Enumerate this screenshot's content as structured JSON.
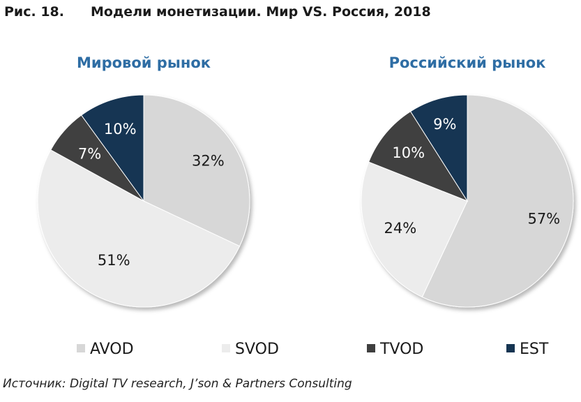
{
  "figure": {
    "number": "Рис. 18.",
    "title": "Модели монетизации. Мир VS. Россия, 2018"
  },
  "source": "Источник: Digital TV research, J’son & Partners Consulting",
  "colors": {
    "AVOD": "#d7d7d7",
    "SVOD": "#ececec",
    "TVOD": "#3f3f3f",
    "EST": "#163552",
    "subtitle": "#2e6da4"
  },
  "chart_data": [
    {
      "type": "pie",
      "title": "Мировой рынок",
      "labels": [
        "AVOD",
        "SVOD",
        "TVOD",
        "EST"
      ],
      "values": [
        32,
        51,
        7,
        10
      ],
      "value_labels": [
        "32%",
        "51%",
        "7%",
        "10%"
      ],
      "legend": "bottom"
    },
    {
      "type": "pie",
      "title": "Российский рынок",
      "labels": [
        "AVOD",
        "SVOD",
        "TVOD",
        "EST"
      ],
      "values": [
        57,
        24,
        10,
        9
      ],
      "value_labels": [
        "57%",
        "24%",
        "10%",
        "9%"
      ],
      "legend": "bottom"
    }
  ],
  "legend": {
    "items": [
      "AVOD",
      "SVOD",
      "TVOD",
      "EST"
    ]
  }
}
